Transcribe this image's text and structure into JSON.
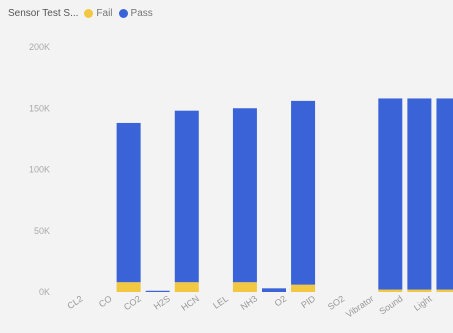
{
  "chart_data": {
    "type": "bar",
    "stacked": true,
    "title": "Sensor Test S...",
    "categories": [
      "CL2",
      "CO",
      "CO2",
      "H2S",
      "HCN",
      "LEL",
      "NH3",
      "O2",
      "PID",
      "SO2",
      "Vibrator",
      "Sound",
      "Light"
    ],
    "series": [
      {
        "name": "Fail",
        "color": "#f2c843",
        "values": [
          0,
          8000,
          0,
          8000,
          0,
          8000,
          0,
          6000,
          0,
          0,
          2000,
          2000,
          2000
        ]
      },
      {
        "name": "Pass",
        "color": "#3a63d8",
        "values": [
          0,
          130000,
          1000,
          140000,
          0,
          142000,
          3000,
          150000,
          0,
          0,
          156000,
          156000,
          156000
        ]
      }
    ],
    "ylim": [
      0,
      200000
    ],
    "yticks": [
      "0K",
      "50K",
      "100K",
      "150K",
      "200K"
    ],
    "legend_position": "top"
  }
}
